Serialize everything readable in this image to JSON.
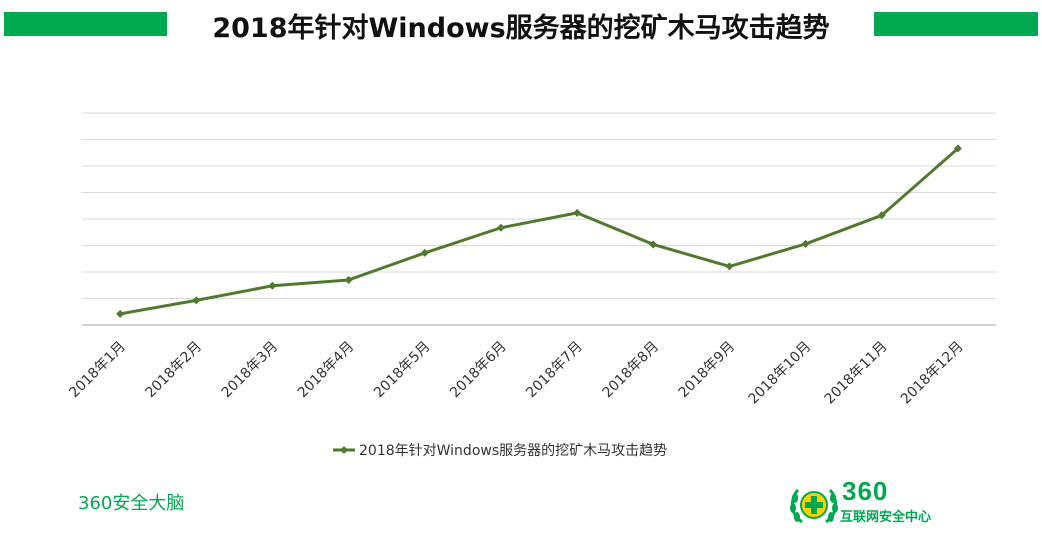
{
  "header": {
    "title": "2018年针对Windows服务器的挖矿木马攻击趋势"
  },
  "footer": {
    "brand": "360安全大脑",
    "logo_number": "360",
    "logo_caption": "互联网安全中心"
  },
  "colors": {
    "accent": "#00a950",
    "series": "#4f7a2c",
    "grid": "#d9d9d9",
    "axis": "#a6a6a6"
  },
  "chart_data": {
    "type": "line",
    "categories": [
      "2018年1月",
      "2018年2月",
      "2018年3月",
      "2018年4月",
      "2018年5月",
      "2018年6月",
      "2018年7月",
      "2018年8月",
      "2018年9月",
      "2018年10月",
      "2018年11月",
      "2018年12月"
    ],
    "series": [
      {
        "name": "2018年针对Windows服务器的挖矿木马攻击趋势",
        "values": [
          0.42,
          0.93,
          1.48,
          1.7,
          2.72,
          3.67,
          4.23,
          3.04,
          2.21,
          3.06,
          4.14,
          6.66
        ]
      }
    ],
    "ylim": [
      0,
      8
    ],
    "yticks_labeled": false,
    "grid": true,
    "legend": "bottom"
  }
}
